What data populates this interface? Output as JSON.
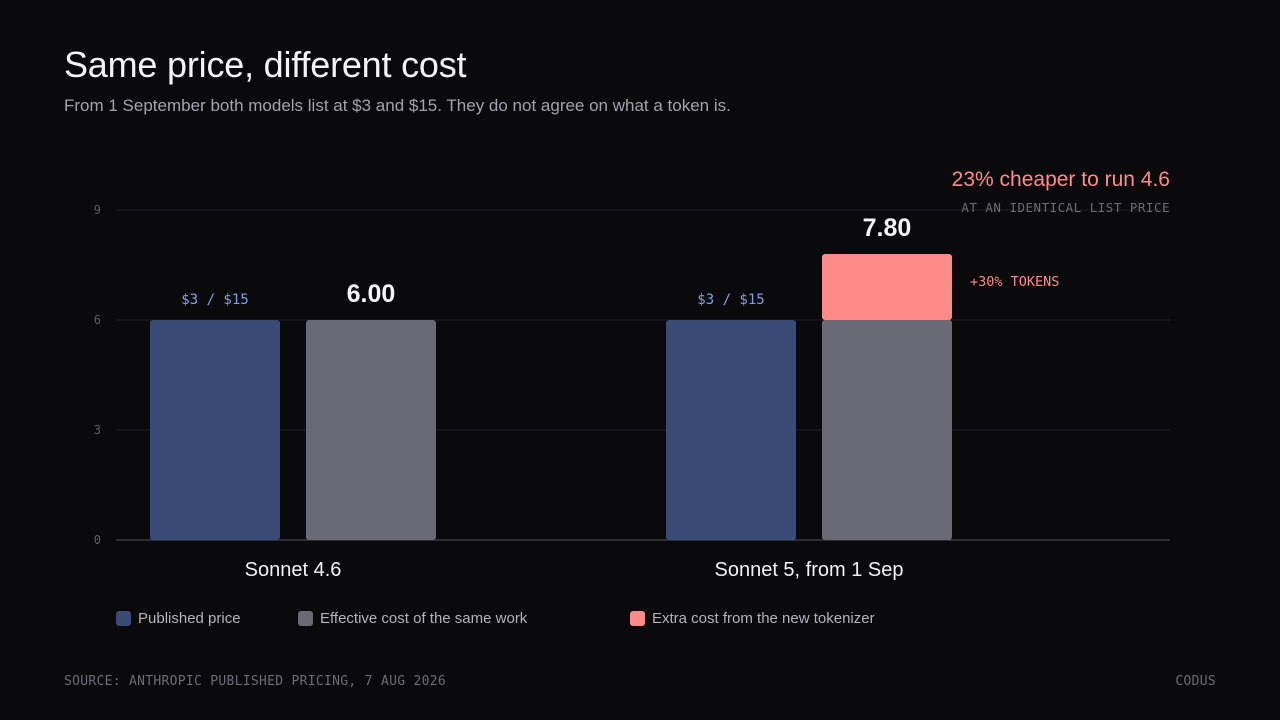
{
  "header": {
    "title": "Same price, different cost",
    "subtitle": "From 1 September both models list at $3 and $15. They do not agree on what a token is."
  },
  "callout": {
    "headline": "23% cheaper to run 4.6",
    "subline": "AT AN IDENTICAL LIST PRICE"
  },
  "legend": {
    "published": "Published price",
    "effective": "Effective cost of the same work",
    "extra": "Extra cost from the new tokenizer"
  },
  "footer": {
    "source": "SOURCE: ANTHROPIC PUBLISHED PRICING, 7 AUG 2026",
    "brand": "CODUS"
  },
  "colors": {
    "published": "#3b4b78",
    "effective": "#6a6a75",
    "extra": "#ff8a8a",
    "label_blue": "#7f9fe6",
    "callout": "#ff8a8a"
  },
  "chart_data": {
    "type": "bar",
    "ylim": [
      0,
      9
    ],
    "yticks": [
      0,
      3,
      6,
      9
    ],
    "categories": [
      "Sonnet 4.6",
      "Sonnet 5, from 1 Sep"
    ],
    "published_labels": [
      "$3 / $15",
      "$3 / $15"
    ],
    "series": [
      {
        "name": "Published price",
        "values": [
          6,
          6
        ]
      },
      {
        "name": "Effective cost of the same work",
        "values": [
          6,
          6
        ]
      },
      {
        "name": "Extra cost from the new tokenizer",
        "values": [
          0,
          1.8
        ]
      }
    ],
    "totals": [
      "6.00",
      "7.80"
    ],
    "annotations": [
      "+30% TOKENS"
    ]
  }
}
